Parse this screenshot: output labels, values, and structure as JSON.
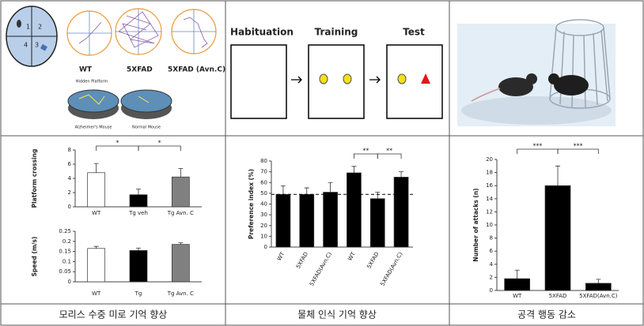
{
  "panels": {
    "maze": {
      "quadrants": [
        "1",
        "2",
        "3",
        "4"
      ],
      "groups": [
        "WT",
        "5XFAD",
        "5XFAD (Avn.C)"
      ],
      "pool_title": "Hidden Platform",
      "pool_labels": [
        "Alzheimer's Mouse",
        "Normal Mouse"
      ]
    },
    "object_recognition": {
      "phases": [
        "Habituation",
        "Training",
        "Test"
      ]
    }
  },
  "chart_data": [
    {
      "type": "bar",
      "y_label": "Platform crossing",
      "categories": [
        "WT",
        "Tg veh",
        "Tg Avn. C"
      ],
      "values": [
        4.8,
        1.7,
        4.2
      ],
      "errors": [
        1.3,
        0.8,
        1.2
      ],
      "colors": [
        "#ffffff",
        "#000000",
        "#808080"
      ],
      "ylim": [
        0,
        8
      ],
      "yticks": [
        0,
        2,
        4,
        6,
        8
      ],
      "annotations": [
        "*",
        "*"
      ]
    },
    {
      "type": "bar",
      "y_label": "Speed (m/s)",
      "categories": [
        "WT",
        "Tg",
        "Tg Avn. C"
      ],
      "values": [
        0.165,
        0.155,
        0.185
      ],
      "errors": [
        0.01,
        0.012,
        0.008
      ],
      "colors": [
        "#ffffff",
        "#000000",
        "#808080"
      ],
      "ylim": [
        0,
        0.25
      ],
      "yticks": [
        0,
        0.05,
        0.1,
        0.15,
        0.2,
        0.25
      ]
    },
    {
      "type": "bar",
      "y_label": "Preference index (%)",
      "categories": [
        "WT",
        "5XFAD",
        "5XFAD(Avn.C)",
        "WT",
        "5XFAD",
        "5XFAD(Avn.C)"
      ],
      "values": [
        49,
        49,
        51,
        69,
        45,
        65
      ],
      "errors": [
        8,
        6,
        9,
        6,
        6,
        5
      ],
      "colors": [
        "#000000",
        "#000000",
        "#000000",
        "#000000",
        "#000000",
        "#000000"
      ],
      "ylim": [
        0,
        80
      ],
      "yticks": [
        0,
        10,
        20,
        30,
        40,
        50,
        60,
        70,
        80
      ],
      "reference_line": 49,
      "annotations": [
        "**",
        "**"
      ]
    },
    {
      "type": "bar",
      "y_label": "Number of attacks (n)",
      "categories": [
        "WT",
        "5XFAD",
        "5XFAD(Avn.C)"
      ],
      "values": [
        1.8,
        16,
        1.1
      ],
      "errors": [
        1.3,
        3,
        0.6
      ],
      "colors": [
        "#000000",
        "#000000",
        "#000000"
      ],
      "ylim": [
        0,
        20
      ],
      "yticks": [
        0,
        2,
        4,
        6,
        8,
        10,
        12,
        14,
        16,
        18,
        20
      ],
      "annotations": [
        "***",
        "***"
      ]
    }
  ],
  "captions": [
    "모리스 수중 미로 기억 향상",
    "물체 인식 기억 향상",
    "공격 행동 감소"
  ]
}
